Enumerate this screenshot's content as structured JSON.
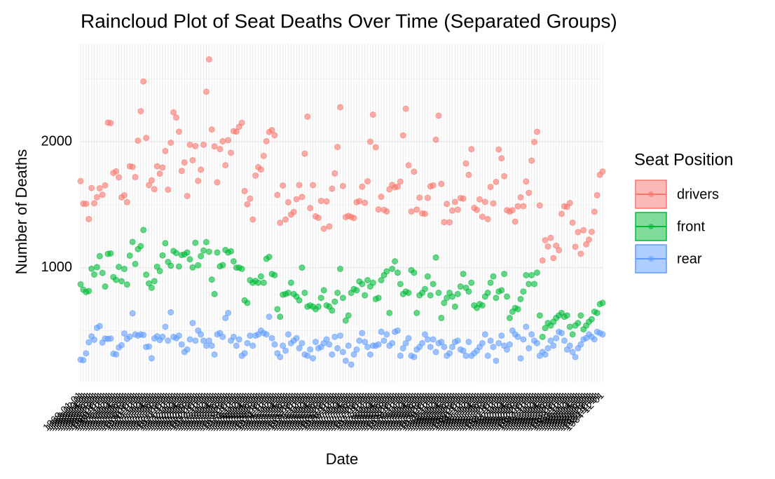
{
  "chart_data": {
    "type": "scatter",
    "title": "Raincloud Plot of Seat Deaths Over Time (Separated Groups)",
    "x_label": "Date",
    "y_label": "Number of Deaths",
    "legend_title": "Seat Position",
    "legend_position": "right",
    "grid": true,
    "ylim": [
      90,
      2780
    ],
    "yticks": [
      1000,
      2000
    ],
    "y_minor_ticks": [
      500,
      1500,
      2500
    ],
    "categories": [
      "1969-01-01",
      "1969-02-01",
      "1969-03-01",
      "1969-04-01",
      "1969-05-01",
      "1969-06-01",
      "1969-07-01",
      "1969-08-01",
      "1969-09-01",
      "1969-10-01",
      "1969-11-01",
      "1969-12-01",
      "1970-01-01",
      "1970-02-01",
      "1970-03-01",
      "1970-04-01",
      "1970-05-01",
      "1970-06-01",
      "1970-07-01",
      "1970-08-01",
      "1970-09-01",
      "1970-10-01",
      "1970-11-01",
      "1970-12-01",
      "1971-01-01",
      "1971-02-01",
      "1971-03-01",
      "1971-04-01",
      "1971-05-01",
      "1971-06-01",
      "1971-07-01",
      "1971-08-01",
      "1971-09-01",
      "1971-10-01",
      "1971-11-01",
      "1971-12-01",
      "1972-01-01",
      "1972-02-01",
      "1972-03-01",
      "1972-04-01",
      "1972-05-01",
      "1972-06-01",
      "1972-07-01",
      "1972-08-01",
      "1972-09-01",
      "1972-10-01",
      "1972-11-01",
      "1972-12-01",
      "1973-01-01",
      "1973-02-01",
      "1973-03-01",
      "1973-04-01",
      "1973-05-01",
      "1973-06-01",
      "1973-07-01",
      "1973-08-01",
      "1973-09-01",
      "1973-10-01",
      "1973-11-01",
      "1973-12-01",
      "1974-01-01",
      "1974-02-01",
      "1974-03-01",
      "1974-04-01",
      "1974-05-01",
      "1974-06-01",
      "1974-07-01",
      "1974-08-01",
      "1974-09-01",
      "1974-10-01",
      "1974-11-01",
      "1974-12-01",
      "1975-01-01",
      "1975-02-01",
      "1975-03-01",
      "1975-04-01",
      "1975-05-01",
      "1975-06-01",
      "1975-07-01",
      "1975-08-01",
      "1975-09-01",
      "1975-10-01",
      "1975-11-01",
      "1975-12-01",
      "1976-01-01",
      "1976-02-01",
      "1976-03-01",
      "1976-04-01",
      "1976-05-01",
      "1976-06-01",
      "1976-07-01",
      "1976-08-01",
      "1976-09-01",
      "1976-10-01",
      "1976-11-01",
      "1976-12-01",
      "1977-01-01",
      "1977-02-01",
      "1977-03-01",
      "1977-04-01",
      "1977-05-01",
      "1977-06-01",
      "1977-07-01",
      "1977-08-01",
      "1977-09-01",
      "1977-10-01",
      "1977-11-01",
      "1977-12-01",
      "1978-01-01",
      "1978-02-01",
      "1978-03-01",
      "1978-04-01",
      "1978-05-01",
      "1978-06-01",
      "1978-07-01",
      "1978-08-01",
      "1978-09-01",
      "1978-10-01",
      "1978-11-01",
      "1978-12-01",
      "1979-01-01",
      "1979-02-01",
      "1979-03-01",
      "1979-04-01",
      "1979-05-01",
      "1979-06-01",
      "1979-07-01",
      "1979-08-01",
      "1979-09-01",
      "1979-10-01",
      "1979-11-01",
      "1979-12-01",
      "1980-01-01",
      "1980-02-01",
      "1980-03-01",
      "1980-04-01",
      "1980-05-01",
      "1980-06-01",
      "1980-07-01",
      "1980-08-01",
      "1980-09-01",
      "1980-10-01",
      "1980-11-01",
      "1980-12-01",
      "1981-01-01",
      "1981-02-01",
      "1981-03-01",
      "1981-04-01",
      "1981-05-01",
      "1981-06-01",
      "1981-07-01",
      "1981-08-01",
      "1981-09-01",
      "1981-10-01",
      "1981-11-01",
      "1981-12-01",
      "1982-01-01",
      "1982-02-01",
      "1982-03-01",
      "1982-04-01",
      "1982-05-01",
      "1982-06-01",
      "1982-07-01",
      "1982-08-01",
      "1982-09-01",
      "1982-10-01",
      "1982-11-01",
      "1982-12-01",
      "1983-01-01",
      "1983-02-01",
      "1983-03-01",
      "1983-04-01",
      "1983-05-01",
      "1983-06-01",
      "1983-07-01",
      "1983-08-01",
      "1983-09-01",
      "1983-10-01",
      "1983-11-01",
      "1983-12-01",
      "1984-01-01",
      "1984-02-01",
      "1984-03-01",
      "1984-04-01",
      "1984-05-01",
      "1984-06-01",
      "1984-07-01",
      "1984-08-01",
      "1984-09-01",
      "1984-10-01",
      "1984-11-01",
      "1984-12-01"
    ],
    "series": [
      {
        "name": "drivers",
        "color": "#F8766D",
        "values": [
          1687,
          1508,
          1507,
          1385,
          1632,
          1511,
          1559,
          1630,
          1579,
          1653,
          2152,
          2148,
          1752,
          1765,
          1717,
          1558,
          1575,
          1520,
          1805,
          1800,
          1719,
          2008,
          2242,
          2478,
          2030,
          1655,
          1693,
          1623,
          1805,
          1746,
          1795,
          1926,
          1619,
          1992,
          2233,
          2192,
          2080,
          1768,
          1835,
          1569,
          1976,
          1853,
          1965,
          1689,
          1778,
          1976,
          2397,
          2654,
          2097,
          1963,
          1677,
          1941,
          2003,
          1813,
          2012,
          1912,
          2084,
          2080,
          2118,
          2150,
          1608,
          1503,
          1548,
          1382,
          1731,
          1798,
          1779,
          1887,
          2004,
          2077,
          2092,
          2051,
          1577,
          1356,
          1652,
          1382,
          1519,
          1421,
          1442,
          1543,
          1656,
          1561,
          1905,
          2199,
          1473,
          1655,
          1407,
          1395,
          1530,
          1309,
          1526,
          1327,
          1627,
          1748,
          1958,
          2274,
          1648,
          1401,
          1411,
          1403,
          1394,
          1520,
          1528,
          1643,
          1515,
          1685,
          2000,
          2215,
          1956,
          1462,
          1563,
          1459,
          1446,
          1622,
          1657,
          1638,
          1643,
          1683,
          2050,
          2262,
          1813,
          1445,
          1762,
          1461,
          1556,
          1431,
          1427,
          1554,
          1645,
          1653,
          2016,
          2207,
          1665,
          1361,
          1506,
          1360,
          1453,
          1522,
          1460,
          1552,
          1548,
          1827,
          1737,
          1941,
          1474,
          1458,
          1542,
          1404,
          1522,
          1385,
          1641,
          1510,
          1681,
          1938,
          1868,
          1726,
          1456,
          1445,
          1456,
          1365,
          1487,
          1558,
          1488,
          1684,
          1594,
          1850,
          1998,
          2079,
          1494,
          1057,
          1218,
          1168,
          1236,
          1076,
          1174,
          1139,
          1427,
          1487,
          1483,
          1513,
          1357,
          1165,
          1282,
          1110,
          1297,
          1185,
          1222,
          1284,
          1444,
          1575,
          1737,
          1763
        ]
      },
      {
        "name": "front",
        "color": "#00BA38",
        "values": [
          867,
          825,
          806,
          814,
          991,
          945,
          1004,
          1091,
          958,
          850,
          1109,
          1113,
          925,
          903,
          1006,
          892,
          990,
          866,
          1095,
          1204,
          1029,
          1147,
          1171,
          1299,
          944,
          874,
          840,
          893,
          1007,
          973,
          1097,
          1194,
          1045,
          1015,
          1132,
          1116,
          1009,
          1100,
          1105,
          1120,
          1066,
          1001,
          1197,
          1019,
          1091,
          1136,
          1203,
          1126,
          905,
          790,
          1120,
          1010,
          1020,
          1140,
          1120,
          1130,
          1050,
          1000,
          1000,
          990,
          740,
          720,
          900,
          880,
          895,
          880,
          930,
          880,
          1070,
          1085,
          950,
          940,
          670,
          610,
          785,
          790,
          800,
          880,
          790,
          770,
          740,
          1000,
          800,
          690,
          700,
          690,
          670,
          690,
          760,
          820,
          700,
          690,
          660,
          730,
          800,
          990,
          760,
          580,
          620,
          800,
          830,
          820,
          890,
          870,
          780,
          900,
          850,
          880,
          750,
          760,
          900,
          940,
          970,
          640,
          990,
          1050,
          960,
          870,
          790,
          810,
          800,
          980,
          960,
          640,
          780,
          800,
          830,
          930,
          780,
          870,
          1080,
          800,
          600,
          720,
          760,
          800,
          770,
          690,
          790,
          850,
          950,
          840,
          810,
          880,
          700,
          680,
          710,
          700,
          770,
          800,
          880,
          930,
          760,
          810,
          820,
          950,
          770,
          600,
          650,
          680,
          670,
          750,
          810,
          940,
          870,
          940,
          870,
          960,
          620,
          450,
          520,
          560,
          540,
          570,
          600,
          620,
          640,
          610,
          620,
          530,
          470,
          540,
          560,
          620,
          510,
          540,
          570,
          590,
          650,
          640,
          710,
          720
        ]
      },
      {
        "name": "rear",
        "color": "#619CFF",
        "values": [
          269,
          265,
          319,
          407,
          454,
          427,
          522,
          536,
          405,
          437,
          434,
          437,
          316,
          311,
          366,
          384,
          477,
          434,
          452,
          637,
          470,
          460,
          470,
          465,
          370,
          373,
          280,
          438,
          455,
          425,
          450,
          530,
          420,
          645,
          450,
          440,
          460,
          390,
          330,
          350,
          430,
          560,
          420,
          500,
          470,
          420,
          380,
          420,
          380,
          310,
          470,
          480,
          450,
          600,
          640,
          420,
          450,
          380,
          430,
          300,
          320,
          400,
          460,
          380,
          460,
          470,
          500,
          480,
          470,
          610,
          440,
          390,
          320,
          290,
          380,
          340,
          470,
          400,
          420,
          440,
          360,
          400,
          310,
          300,
          350,
          280,
          410,
          360,
          370,
          400,
          430,
          390,
          310,
          450,
          360,
          460,
          330,
          260,
          380,
          230,
          310,
          350,
          420,
          480,
          410,
          370,
          310,
          380,
          380,
          390,
          490,
          420,
          470,
          380,
          400,
          490,
          500,
          300,
          360,
          400,
          440,
          300,
          290,
          350,
          370,
          400,
          470,
          430,
          370,
          430,
          330,
          400,
          410,
          370,
          300,
          320,
          370,
          410,
          420,
          350,
          340,
          300,
          410,
          300,
          320,
          340,
          370,
          400,
          470,
          300,
          420,
          370,
          260,
          400,
          460,
          380,
          350,
          390,
          500,
          470,
          450,
          280,
          430,
          530,
          360,
          470,
          420,
          400,
          300,
          330,
          310,
          360,
          420,
          380,
          440,
          490,
          480,
          420,
          350,
          380,
          330,
          290,
          360,
          390,
          430,
          440,
          470,
          450,
          430,
          490,
          480,
          470
        ]
      }
    ]
  }
}
